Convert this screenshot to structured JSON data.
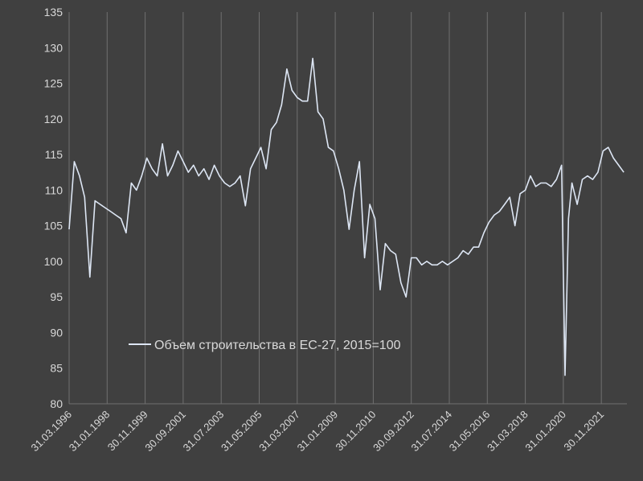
{
  "chart_data": {
    "type": "line",
    "title": "",
    "xlabel": "",
    "ylabel": "",
    "ylim": [
      80,
      135
    ],
    "yticks": [
      80,
      85,
      90,
      95,
      100,
      105,
      110,
      115,
      120,
      125,
      130,
      135
    ],
    "xticks": [
      "31.03.1996",
      "31.01.1998",
      "30.11.1999",
      "30.09.2001",
      "31.07.2003",
      "31.05.2005",
      "31.03.2007",
      "31.01.2009",
      "30.11.2010",
      "30.09.2012",
      "31.07.2014",
      "31.05.2016",
      "31.03.2018",
      "31.01.2020",
      "30.11.2021"
    ],
    "grid": "vertical",
    "legend": "inside-lower-left",
    "colors": {
      "background": "#404040",
      "line": "#dde6f4",
      "grid": "#707070",
      "text": "#d9d9d9"
    },
    "series": [
      {
        "name": "Объем строительства в ЕС-27, 2015=100",
        "x": [
          "1996-03",
          "1996-06",
          "1996-09",
          "1996-12",
          "1997-03",
          "1997-06",
          "1997-09",
          "1997-12",
          "1998-03",
          "1998-06",
          "1998-09",
          "1998-12",
          "1999-03",
          "1999-06",
          "1999-09",
          "1999-12",
          "2000-03",
          "2000-06",
          "2000-09",
          "2000-12",
          "2001-03",
          "2001-06",
          "2001-09",
          "2001-12",
          "2002-03",
          "2002-06",
          "2002-09",
          "2002-12",
          "2003-03",
          "2003-06",
          "2003-09",
          "2003-12",
          "2004-03",
          "2004-06",
          "2004-09",
          "2004-12",
          "2005-03",
          "2005-06",
          "2005-09",
          "2005-12",
          "2006-03",
          "2006-06",
          "2006-09",
          "2006-12",
          "2007-03",
          "2007-06",
          "2007-09",
          "2007-12",
          "2008-03",
          "2008-06",
          "2008-09",
          "2008-12",
          "2009-03",
          "2009-06",
          "2009-09",
          "2009-12",
          "2010-03",
          "2010-06",
          "2010-09",
          "2010-12",
          "2011-03",
          "2011-06",
          "2011-09",
          "2011-12",
          "2012-03",
          "2012-06",
          "2012-09",
          "2012-12",
          "2013-03",
          "2013-06",
          "2013-09",
          "2013-12",
          "2014-03",
          "2014-06",
          "2014-09",
          "2014-12",
          "2015-03",
          "2015-06",
          "2015-09",
          "2015-12",
          "2016-03",
          "2016-06",
          "2016-09",
          "2016-12",
          "2017-03",
          "2017-06",
          "2017-09",
          "2017-12",
          "2018-03",
          "2018-06",
          "2018-09",
          "2018-12",
          "2019-03",
          "2019-06",
          "2019-09",
          "2019-12",
          "2020-02",
          "2020-04",
          "2020-06",
          "2020-09",
          "2020-12",
          "2021-03",
          "2021-06",
          "2021-09",
          "2021-12",
          "2022-03",
          "2022-06",
          "2022-09",
          "2022-12"
        ],
        "values": [
          104.5,
          114.0,
          112.0,
          109.0,
          97.8,
          108.5,
          108.0,
          107.5,
          107.0,
          106.5,
          106.0,
          104.0,
          111.0,
          110.0,
          112.0,
          114.5,
          113.0,
          112.0,
          116.5,
          112.0,
          113.5,
          115.5,
          114.0,
          112.5,
          113.5,
          112.0,
          113.0,
          111.5,
          113.5,
          112.0,
          111.0,
          110.5,
          111.0,
          112.0,
          107.8,
          113.0,
          114.5,
          116.0,
          113.0,
          118.5,
          119.5,
          122.0,
          127.0,
          124.0,
          123.0,
          122.5,
          122.5,
          128.5,
          121.0,
          120.0,
          116.0,
          115.5,
          113.0,
          110.0,
          104.5,
          110.0,
          114.0,
          100.5,
          108.0,
          106.0,
          96.0,
          102.5,
          101.5,
          101.0,
          97.0,
          95.0,
          100.5,
          100.5,
          99.5,
          100.0,
          99.5,
          99.5,
          100.0,
          99.5,
          100.0,
          100.5,
          101.5,
          101.0,
          102.0,
          102.0,
          104.0,
          105.5,
          106.5,
          107.0,
          108.0,
          109.0,
          105.0,
          109.5,
          110.0,
          112.0,
          110.5,
          111.0,
          111.0,
          110.5,
          111.5,
          113.5,
          84.0,
          106.0,
          111.0,
          108.0,
          111.5,
          112.0,
          111.5,
          112.5,
          115.5,
          116.0,
          114.5,
          113.5,
          112.5
        ]
      }
    ]
  }
}
